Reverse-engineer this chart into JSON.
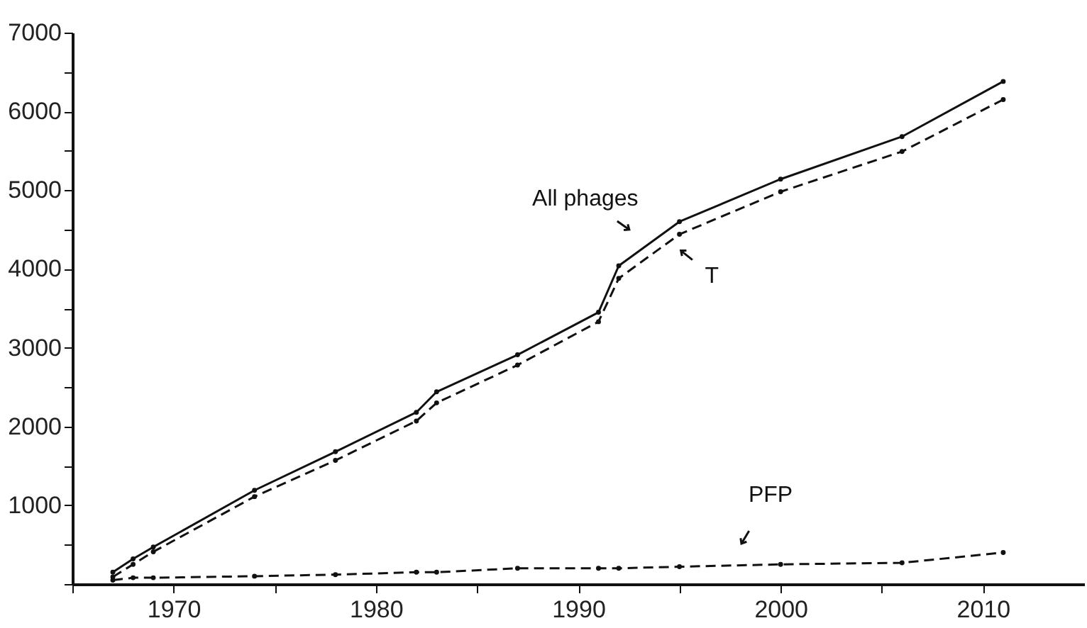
{
  "chart_data": {
    "type": "line",
    "x": [
      1967,
      1968,
      1969,
      1974,
      1978,
      1982,
      1983,
      1987,
      1991,
      1992,
      1995,
      2000,
      2006,
      2011
    ],
    "series": [
      {
        "color": "#111111",
        "line_style": "solid",
        "values": [
          150,
          320,
          470,
          1190,
          1680,
          2180,
          2440,
          2910,
          3450,
          4040,
          4600,
          5140,
          5680,
          6380
        ]
      },
      {
        "color": "#111111",
        "line_style": "dashed",
        "values": [
          90,
          250,
          410,
          1110,
          1570,
          2070,
          2300,
          2780,
          3330,
          3880,
          4440,
          4980,
          5490,
          6150
        ]
      },
      {
        "color": "#111111",
        "line_style": "dashed",
        "values": [
          50,
          80,
          80,
          100,
          120,
          150,
          150,
          200,
          200,
          200,
          220,
          250,
          270,
          400
        ]
      }
    ],
    "marker": "circle",
    "xlim": [
      1965,
      2015
    ],
    "xticks": [
      {
        "value": 1965,
        "label": null
      },
      1970,
      {
        "value": 1975,
        "label": null
      },
      1980,
      {
        "value": 1985,
        "label": null
      },
      1990,
      {
        "value": 1995,
        "label": null
      },
      2000,
      {
        "value": 2005,
        "label": null
      },
      2010
    ],
    "ylim": [
      0,
      7000
    ],
    "yticks": [
      {
        "value": 0,
        "label": null
      },
      {
        "value": 500,
        "label": null
      },
      1000,
      {
        "value": 1500,
        "label": null
      },
      2000,
      {
        "value": 2500,
        "label": null
      },
      3000,
      {
        "value": 3500,
        "label": null
      },
      4000,
      {
        "value": 4500,
        "label": null
      },
      5000,
      {
        "value": 5500,
        "label": null
      },
      6000,
      {
        "value": 6500,
        "label": null
      },
      7000
    ],
    "grid": false,
    "annotations": [
      {
        "text": "All phages",
        "x": 1993.5,
        "y": 4320
      },
      {
        "text": "T",
        "x": 1994.5,
        "y": 4350
      },
      {
        "text": "PFP",
        "x": 1997.4,
        "y": 230
      }
    ]
  }
}
